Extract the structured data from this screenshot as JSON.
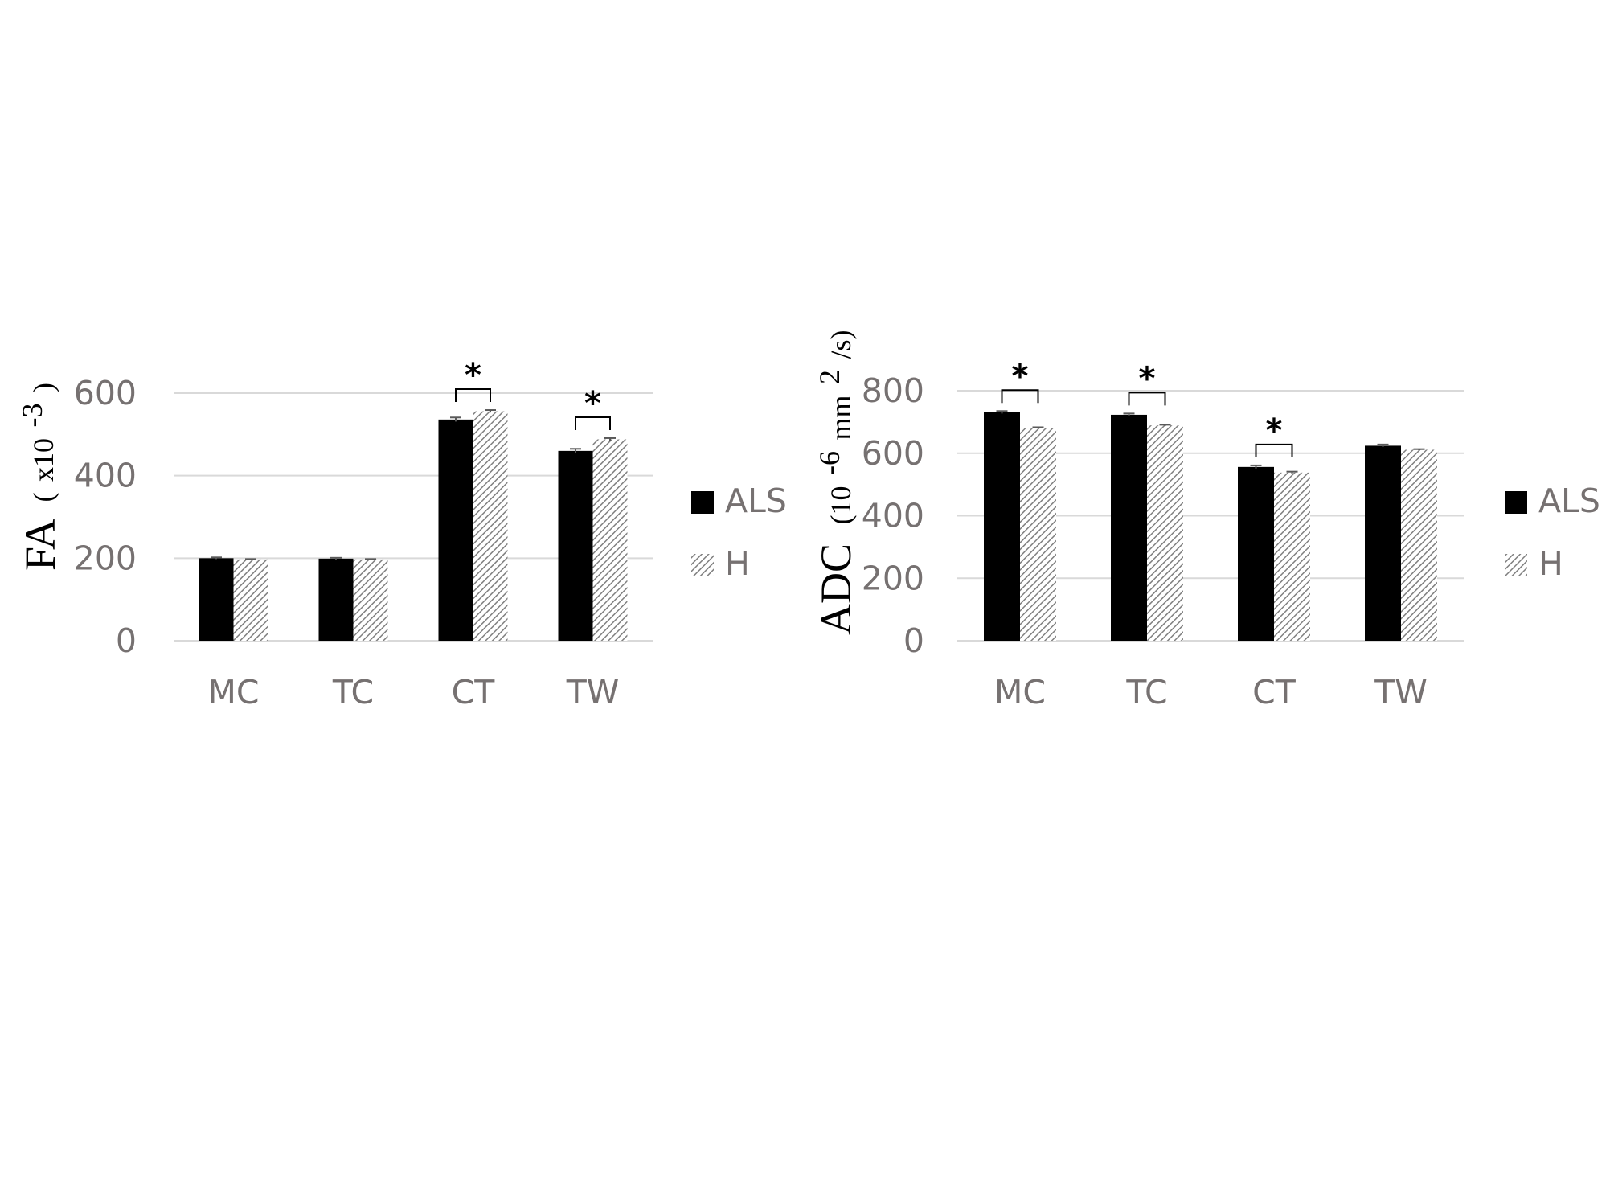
{
  "colors": {
    "als": "#000000",
    "healthy_hatch": "#7f7f7f",
    "gridline": "#d9d9d9",
    "axis_text": "#767171"
  },
  "chart_data": [
    {
      "type": "bar",
      "ylabel": "FA",
      "ylabel_unit_prefix": "x10",
      "ylabel_unit_exp": "-3",
      "categories": [
        "MC",
        "TC",
        "CT",
        "TW"
      ],
      "ylim": [
        0,
        600
      ],
      "yticks": [
        0,
        200,
        400,
        600
      ],
      "grid": true,
      "legend": "right",
      "series": [
        {
          "name": "ALS",
          "values": [
            200,
            199,
            536,
            460
          ],
          "errors": [
            2,
            2,
            5,
            5
          ]
        },
        {
          "name": "H",
          "values": [
            197,
            197,
            556,
            488
          ],
          "errors": [
            1,
            1,
            3,
            3
          ]
        }
      ],
      "significance": [
        {
          "category": "CT",
          "label": "*"
        },
        {
          "category": "TW",
          "label": "*"
        }
      ]
    },
    {
      "type": "bar",
      "ylabel": "ADC",
      "ylabel_unit_prefix": "(10",
      "ylabel_unit_exp": "-6",
      "ylabel_unit_suffix": " mm",
      "ylabel_unit_exp2": "2",
      "ylabel_unit_end": "/s)",
      "categories": [
        "MC",
        "TC",
        "CT",
        "TW"
      ],
      "ylim": [
        0,
        800
      ],
      "yticks": [
        0,
        200,
        400,
        600,
        800
      ],
      "grid": true,
      "legend": "right",
      "series": [
        {
          "name": "ALS",
          "values": [
            731,
            723,
            556,
            624
          ],
          "errors": [
            4,
            4,
            5,
            4
          ]
        },
        {
          "name": "H",
          "values": [
            681,
            689,
            538,
            611
          ],
          "errors": [
            2,
            2,
            3,
            2
          ]
        }
      ],
      "significance": [
        {
          "category": "MC",
          "label": "*"
        },
        {
          "category": "TC",
          "label": "*"
        },
        {
          "category": "CT",
          "label": "*"
        }
      ]
    }
  ]
}
